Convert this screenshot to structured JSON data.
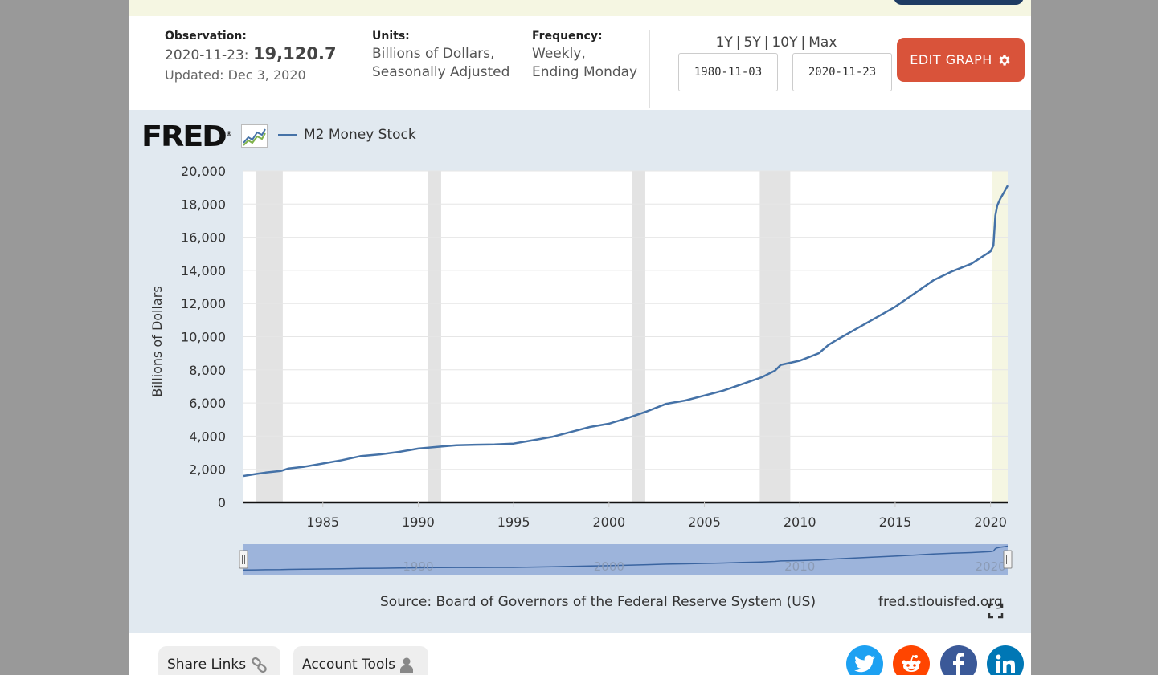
{
  "observation": {
    "label": "Observation:",
    "date": "2020-11-23:",
    "value": "19,120.7",
    "updated": "Updated: Dec 3, 2020"
  },
  "units": {
    "label": "Units:",
    "line1": "Billions of Dollars,",
    "line2": "Seasonally Adjusted"
  },
  "frequency": {
    "label": "Frequency:",
    "line1": "Weekly,",
    "line2": "Ending Monday"
  },
  "range_links": [
    "1Y",
    "5Y",
    "10Y",
    "Max"
  ],
  "range_separator": "|",
  "date_range": {
    "start": "1980-11-03",
    "end": "2020-11-23"
  },
  "edit_graph_label": "EDIT GRAPH",
  "logo_text": "FRED",
  "logo_mark": "®",
  "legend_label": "M2 Money Stock",
  "source": "Source: Board of Governors of the Federal Reserve System (US)",
  "site": "fred.stlouisfed.org",
  "bottom_buttons": {
    "share": "Share Links",
    "account": "Account Tools"
  },
  "social_icons": [
    "twitter-icon",
    "reddit-icon",
    "facebook-icon",
    "linkedin-icon"
  ],
  "colors": {
    "series": "#4572a7",
    "recession": "#e3e3e3",
    "edit_button": "#d9533a",
    "navigator_fill": "#9db4db",
    "twitter": "#1da1f2",
    "reddit": "#ff4500",
    "facebook": "#3b5998",
    "linkedin": "#0077b5"
  },
  "chart_data": {
    "type": "line",
    "title": "",
    "ylabel": "Billions of Dollars",
    "xlabel": "",
    "ylim": [
      0,
      20000
    ],
    "xlim": [
      1980.84,
      2020.9
    ],
    "yticks": [
      0,
      2000,
      4000,
      6000,
      8000,
      10000,
      12000,
      14000,
      16000,
      18000,
      20000
    ],
    "ytick_labels": [
      "0",
      "2,000",
      "4,000",
      "6,000",
      "8,000",
      "10,000",
      "12,000",
      "14,000",
      "16,000",
      "18,000",
      "20,000"
    ],
    "xticks": [
      1985,
      1990,
      1995,
      2000,
      2005,
      2010,
      2015,
      2020
    ],
    "xtick_labels": [
      "1985",
      "1990",
      "1995",
      "2000",
      "2005",
      "2010",
      "2015",
      "2020"
    ],
    "grid": true,
    "legend_position": "top-left",
    "recessions": [
      [
        1981.5,
        1982.9
      ],
      [
        1990.5,
        1991.2
      ],
      [
        2001.2,
        2001.9
      ],
      [
        2007.9,
        2009.5
      ],
      [
        2020.1,
        2020.9
      ]
    ],
    "series": [
      {
        "name": "M2 Money Stock",
        "x": [
          1980.84,
          1981.5,
          1982.0,
          1982.8,
          1983.2,
          1984.0,
          1985.0,
          1986.0,
          1987.0,
          1988.0,
          1989.0,
          1990.0,
          1991.0,
          1992.0,
          1993.0,
          1994.0,
          1995.0,
          1996.0,
          1997.0,
          1998.0,
          1999.0,
          2000.0,
          2001.0,
          2002.0,
          2003.0,
          2004.0,
          2005.0,
          2006.0,
          2007.0,
          2008.0,
          2008.7,
          2009.0,
          2010.0,
          2011.0,
          2011.5,
          2012.0,
          2013.0,
          2014.0,
          2015.0,
          2016.0,
          2017.0,
          2018.0,
          2019.0,
          2020.0,
          2020.15,
          2020.25,
          2020.35,
          2020.5,
          2020.7,
          2020.9
        ],
        "y": [
          1600,
          1720,
          1800,
          1900,
          2050,
          2150,
          2350,
          2550,
          2800,
          2900,
          3050,
          3250,
          3350,
          3450,
          3480,
          3500,
          3550,
          3750,
          3950,
          4250,
          4550,
          4750,
          5100,
          5500,
          5950,
          6150,
          6450,
          6750,
          7150,
          7550,
          7950,
          8300,
          8550,
          9000,
          9500,
          9850,
          10500,
          11150,
          11800,
          12600,
          13400,
          13950,
          14400,
          15150,
          15500,
          17300,
          17900,
          18300,
          18700,
          19120
        ]
      }
    ]
  }
}
